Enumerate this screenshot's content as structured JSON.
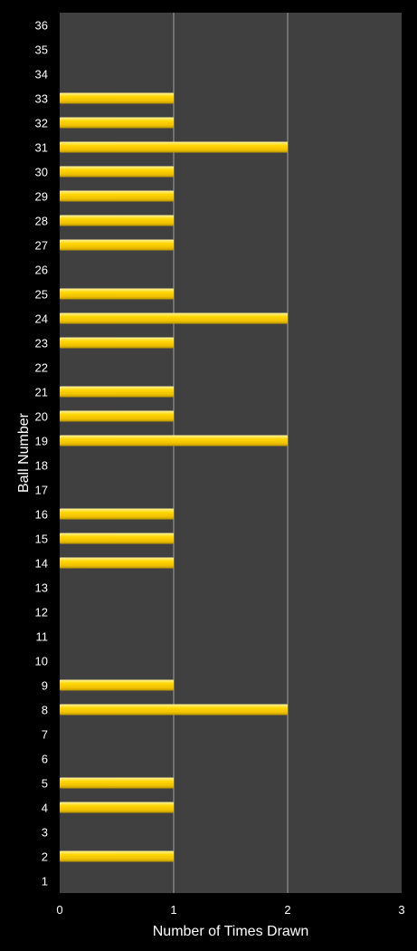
{
  "chart_data": {
    "type": "bar",
    "orientation": "horizontal",
    "xlabel": "Number of Times Drawn",
    "ylabel": "Ball Number",
    "xlim": [
      0,
      3
    ],
    "x_ticks": [
      "0",
      "1",
      "2",
      "3"
    ],
    "grid": true,
    "legend": "none",
    "categories": [
      "1",
      "2",
      "3",
      "4",
      "5",
      "6",
      "7",
      "8",
      "9",
      "10",
      "11",
      "12",
      "13",
      "14",
      "15",
      "16",
      "17",
      "18",
      "19",
      "20",
      "21",
      "22",
      "23",
      "24",
      "25",
      "26",
      "27",
      "28",
      "29",
      "30",
      "31",
      "32",
      "33",
      "34",
      "35",
      "36"
    ],
    "values": [
      0,
      1,
      0,
      1,
      1,
      0,
      0,
      2,
      1,
      0,
      0,
      0,
      0,
      1,
      1,
      1,
      0,
      0,
      2,
      1,
      1,
      0,
      1,
      2,
      1,
      0,
      1,
      1,
      1,
      1,
      2,
      1,
      1,
      0,
      0,
      0
    ],
    "colors": {
      "background": "#000000",
      "plot_area": "#404040",
      "gridline": "#a0a0a0",
      "bar": "#ffd700",
      "bar_highlight": "#fff3a0",
      "bar_shadow": "#b89400",
      "text": "#ffffff"
    }
  }
}
